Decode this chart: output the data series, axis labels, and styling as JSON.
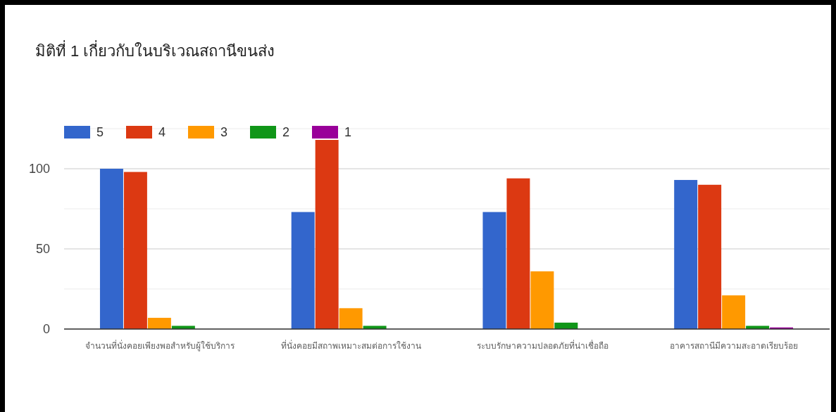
{
  "chart_data": {
    "type": "bar",
    "title": "มิติที่ 1 เกี่ยวกับในบริเวณสถานีขนส่ง",
    "categories": [
      "จำนวนที่นั่งคอยเพียงพอสำหรับผู้ใช้บริการ",
      "ที่นั่งคอยมีสถาพเหมาะสมต่อการใช้งาน",
      "ระบบรักษาความปลอดภัยที่น่าเชื่อถือ",
      "อาคารสถานีมีความสะอาดเรียบร้อย"
    ],
    "series": [
      {
        "name": "5",
        "color": "#3366cc",
        "values": [
          100,
          73,
          73,
          93
        ]
      },
      {
        "name": "4",
        "color": "#dc3912",
        "values": [
          98,
          118,
          94,
          90
        ]
      },
      {
        "name": "3",
        "color": "#ff9900",
        "values": [
          7,
          13,
          36,
          21
        ]
      },
      {
        "name": "2",
        "color": "#109618",
        "values": [
          2,
          2,
          4,
          2
        ]
      },
      {
        "name": "1",
        "color": "#990099",
        "values": [
          0,
          0,
          0,
          1
        ]
      }
    ],
    "ylim": [
      0,
      125
    ],
    "yticks": [
      0,
      {
        "value": 25,
        "label": null
      },
      50,
      {
        "value": 75,
        "label": null
      },
      100,
      {
        "value": 125,
        "label": null
      }
    ],
    "grid": "y",
    "legend": "top"
  }
}
